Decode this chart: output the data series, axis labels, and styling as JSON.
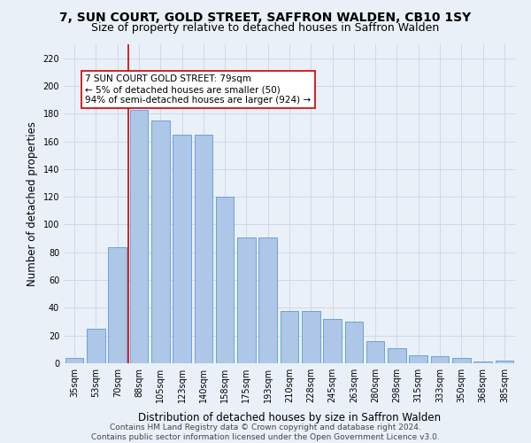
{
  "title": "7, SUN COURT, GOLD STREET, SAFFRON WALDEN, CB10 1SY",
  "subtitle": "Size of property relative to detached houses in Saffron Walden",
  "xlabel": "Distribution of detached houses by size in Saffron Walden",
  "ylabel": "Number of detached properties",
  "categories": [
    "35sqm",
    "53sqm",
    "70sqm",
    "88sqm",
    "105sqm",
    "123sqm",
    "140sqm",
    "158sqm",
    "175sqm",
    "193sqm",
    "210sqm",
    "228sqm",
    "245sqm",
    "263sqm",
    "280sqm",
    "298sqm",
    "315sqm",
    "333sqm",
    "350sqm",
    "368sqm",
    "385sqm"
  ],
  "values": [
    4,
    25,
    84,
    183,
    175,
    165,
    165,
    120,
    91,
    91,
    38,
    38,
    32,
    30,
    16,
    11,
    6,
    5,
    4,
    1,
    2
  ],
  "bar_color": "#aec6e8",
  "bar_edge_color": "#5b9bd5",
  "vline_x": 2.5,
  "vline_color": "#cc0000",
  "annotation_text": "7 SUN COURT GOLD STREET: 79sqm\n← 5% of detached houses are smaller (50)\n94% of semi-detached houses are larger (924) →",
  "annotation_box_color": "#ffffff",
  "annotation_box_edge_color": "#cc0000",
  "ylim": [
    0,
    230
  ],
  "yticks": [
    0,
    20,
    40,
    60,
    80,
    100,
    120,
    140,
    160,
    180,
    200,
    220
  ],
  "grid_color": "#d0d8e8",
  "background_color": "#eaf0f8",
  "footer_text": "Contains HM Land Registry data © Crown copyright and database right 2024.\nContains public sector information licensed under the Open Government Licence v3.0.",
  "title_fontsize": 10,
  "subtitle_fontsize": 9,
  "xlabel_fontsize": 8.5,
  "ylabel_fontsize": 8.5,
  "tick_fontsize": 7,
  "annotation_fontsize": 7.5,
  "footer_fontsize": 6.5
}
